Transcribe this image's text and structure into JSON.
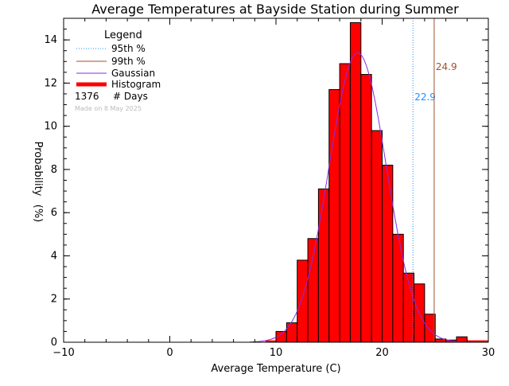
{
  "chart_data": {
    "type": "bar",
    "title": "Average Temperatures at Bayside Station during Summer",
    "xlabel": "Average Temperature (C)",
    "ylabel_line1": "Probability",
    "ylabel_line2": "(%)",
    "xlim": [
      -10,
      30
    ],
    "ylim": [
      0,
      15
    ],
    "xticks": [
      -10,
      0,
      10,
      20,
      30
    ],
    "yticks": [
      0,
      2,
      4,
      6,
      8,
      10,
      12,
      14
    ],
    "grid": false,
    "legend_position": "top-left",
    "legend": {
      "title": "Legend",
      "entries": [
        {
          "label": "95th %",
          "color": "#1e90ff",
          "style": "dotted"
        },
        {
          "label": "99th %",
          "color": "#a0522d",
          "style": "solid"
        },
        {
          "label": "Gaussian",
          "color": "#8a2be2",
          "style": "solid"
        },
        {
          "label": "Histogram",
          "color": "#ff0000",
          "style": "thick"
        }
      ],
      "days_count": "1376",
      "days_label": "# Days",
      "made_on": "Made on 8 May 2025"
    },
    "histogram": {
      "color": "#ff0000",
      "bin_width": 1,
      "bins": [
        {
          "start": 10,
          "value": 0.5
        },
        {
          "start": 11,
          "value": 0.9
        },
        {
          "start": 12,
          "value": 3.8
        },
        {
          "start": 13,
          "value": 4.8
        },
        {
          "start": 14,
          "value": 7.1
        },
        {
          "start": 15,
          "value": 11.7
        },
        {
          "start": 16,
          "value": 12.9
        },
        {
          "start": 17,
          "value": 14.8
        },
        {
          "start": 18,
          "value": 12.4
        },
        {
          "start": 19,
          "value": 9.8
        },
        {
          "start": 20,
          "value": 8.2
        },
        {
          "start": 21,
          "value": 5.0
        },
        {
          "start": 22,
          "value": 3.2
        },
        {
          "start": 23,
          "value": 2.7
        },
        {
          "start": 24,
          "value": 1.3
        },
        {
          "start": 25,
          "value": 0.15
        },
        {
          "start": 26,
          "value": 0.1
        },
        {
          "start": 27,
          "value": 0.25
        }
      ],
      "baseline_segments": [
        {
          "from": 9,
          "to": 10,
          "value": 0.05
        },
        {
          "from": 28,
          "to": 30,
          "value": 0.05
        }
      ]
    },
    "gaussian": {
      "mean": 17.7,
      "sigma": 2.7,
      "peak": 13.4,
      "color": "#8a2be2"
    },
    "percentiles": [
      {
        "name": "95th %",
        "x": 22.9,
        "label": "22.9",
        "color": "#1e90ff",
        "label_y": 11.2,
        "style": "dotted"
      },
      {
        "name": "99th %",
        "x": 24.9,
        "label": "24.9",
        "color": "#a0522d",
        "label_y": 12.6,
        "style": "solid"
      }
    ]
  }
}
